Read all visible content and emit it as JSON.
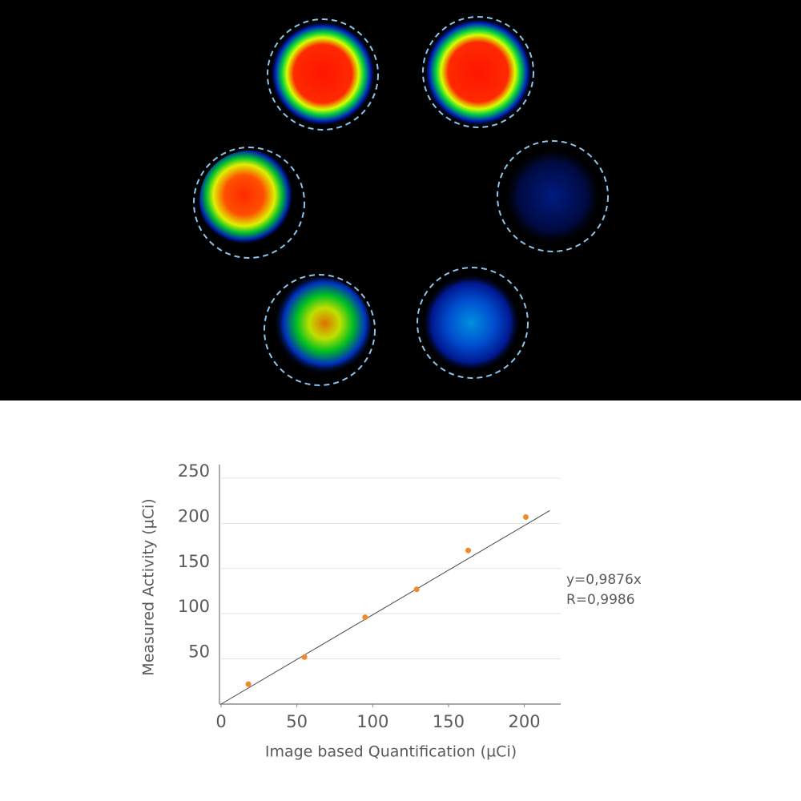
{
  "chart_data": {
    "type": "scatter",
    "x_label": "Image based Quantification (µCi)",
    "y_label": "Measured Activity (µCi)",
    "x": [
      18,
      55,
      95,
      129,
      163,
      201
    ],
    "values": [
      22,
      52,
      96,
      127,
      170,
      207
    ],
    "color": "#f08a2c",
    "xlim": [
      0,
      224
    ],
    "ylim": [
      0,
      265
    ],
    "xticks": [
      0,
      50,
      100,
      150,
      200
    ],
    "yticks": [
      50,
      100,
      150,
      200,
      250
    ],
    "grid": true,
    "fit": {
      "slope": 0.9876,
      "label": "y=0,9876x",
      "r_label": "R=0,9986"
    }
  }
}
